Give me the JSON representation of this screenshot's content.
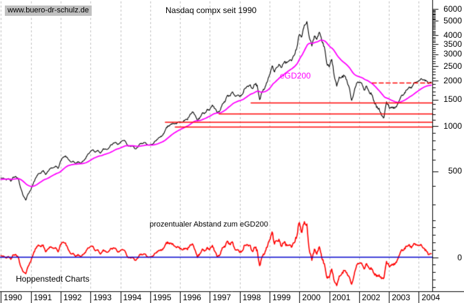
{
  "header": {
    "watermark": "www.buero-dr-schulz.de",
    "title": "Nasdaq compx seit 1990"
  },
  "labels": {
    "ma": "eGD200",
    "oscillator": "prozentualer Abstand zum eGD200",
    "source": "Hoppenstedt Charts"
  },
  "colors": {
    "price": "#000000",
    "ma": "#ff00ff",
    "level_lines": "#ff0000",
    "oscillator": "#ff0000",
    "zero_line": "#0000cc",
    "grid": "#c0c0c0",
    "axis": "#000000",
    "watermark_bg": "#c0c0c0"
  },
  "axes": {
    "x": {
      "years": [
        "1990",
        "1991",
        "1992",
        "1993",
        "1994",
        "1995",
        "1996",
        "1997",
        "1998",
        "1999",
        "2000",
        "2001",
        "2002",
        "2003",
        "2004"
      ]
    },
    "y_price": {
      "tick_labels": [
        "6000",
        "5000",
        "4000",
        "3500",
        "3000",
        "2500",
        "2000",
        "1500",
        "1000",
        "500"
      ],
      "scale": "log"
    },
    "y_osc": {
      "zero_label": "0",
      "tick_step_percent": 10
    }
  },
  "chart_data": {
    "type": "line",
    "title": "Nasdaq compx seit 1990",
    "xlabel": "",
    "ylabel": "",
    "x_range": [
      1990.0,
      2004.42
    ],
    "y_axis": {
      "scale": "log",
      "ticks": [
        6000,
        5000,
        4000,
        3500,
        3000,
        2500,
        2000,
        1500,
        1000,
        500
      ]
    },
    "x_axis": {
      "ticks": [
        1990,
        1991,
        1992,
        1993,
        1994,
        1995,
        1996,
        1997,
        1998,
        1999,
        2000,
        2001,
        2002,
        2003,
        2004
      ]
    },
    "grid": "vertical-dashed-yearly",
    "series_price": {
      "name": "Nasdaq Composite",
      "start_year": 1990.0,
      "step_years": 0.08333,
      "values": [
        452,
        450,
        440,
        448,
        430,
        458,
        462,
        445,
        385,
        344,
        322,
        355,
        374,
        414,
        453,
        482,
        485,
        507,
        476,
        502,
        526,
        527,
        542,
        523,
        586,
        620,
        633,
        604,
        579,
        585,
        564,
        581,
        563,
        583,
        605,
        652,
        677,
        696,
        671,
        690,
        661,
        701,
        704,
        704,
        743,
        763,
        779,
        754,
        777,
        800,
        793,
        743,
        734,
        735,
        706,
        722,
        766,
        764,
        777,
        750,
        752,
        755,
        794,
        817,
        844,
        865,
        933,
        1001,
        1020,
        1044,
        1036,
        1059,
        1052,
        1060,
        1100,
        1101,
        1191,
        1243,
        1185,
        1081,
        1142,
        1227,
        1221,
        1293,
        1291,
        1380,
        1309,
        1222,
        1261,
        1400,
        1442,
        1594,
        1587,
        1686,
        1594,
        1601,
        1570,
        1619,
        1771,
        1836,
        1868,
        1779,
        1895,
        1872,
        1499,
        1694,
        1771,
        1950,
        2193,
        2506,
        2288,
        2461,
        2543,
        2471,
        2686,
        2638,
        2739,
        2746,
        2966,
        3336,
        4069,
        3940,
        4697,
        4950,
        3861,
        3401,
        3966,
        3767,
        4206,
        3673,
        3370,
        2598,
        2470,
        2773,
        2152,
        1840,
        2116,
        2110,
        2161,
        2027,
        1805,
        1480,
        1690,
        1930,
        1950,
        1934,
        1731,
        1845,
        1688,
        1616,
        1463,
        1328,
        1315,
        1172,
        1140,
        1450,
        1336,
        1321,
        1338,
        1341,
        1464,
        1596,
        1623,
        1735,
        1810,
        1787,
        1932,
        1960,
        2003,
        2066,
        2030,
        1994,
        1920,
        1960
      ]
    },
    "series_ma": {
      "name": "eGD200",
      "method": "ema-of-price",
      "alpha_monthly": 0.15,
      "initial": 442
    },
    "series_oscillator": {
      "name": "prozentualer Abstand zum eGD200",
      "formula": "(price / eGD200 - 1) * 100",
      "zero_line": 0
    },
    "support_lines": [
      {
        "value": 1430,
        "from_year": 1998.38
      },
      {
        "value": 1205,
        "from_year": 1997.31
      },
      {
        "value": 1065,
        "from_year": 1995.51
      },
      {
        "value": 995,
        "from_year": 1995.84
      }
    ],
    "resistance_dashed": {
      "value": 1940,
      "from_year": 2002.44
    },
    "legend_position": "none"
  }
}
